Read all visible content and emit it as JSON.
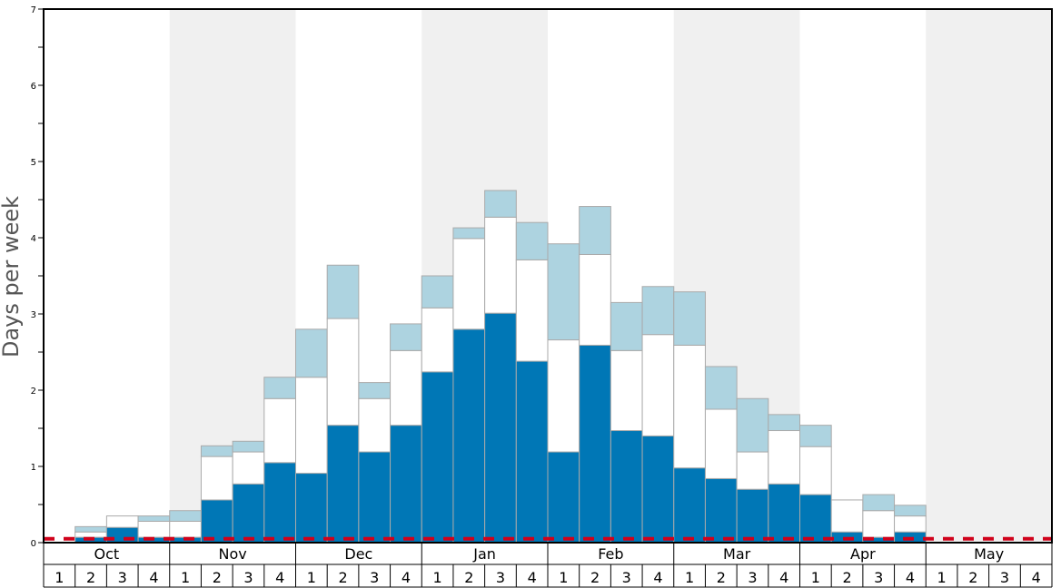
{
  "chart_data": {
    "type": "bar",
    "stacked": true,
    "ylabel": "Days per week",
    "ylim": [
      0,
      7
    ],
    "yticks": [
      "0",
      "1",
      "2",
      "3",
      "4",
      "5",
      "6",
      "7"
    ],
    "months": [
      "Oct",
      "Nov",
      "Dec",
      "Jan",
      "Feb",
      "Mar",
      "Apr",
      "May"
    ],
    "week_labels": [
      "1",
      "2",
      "3",
      "4"
    ],
    "colors": {
      "dark": "#0077b6",
      "white": "#ffffff",
      "light": "#add3e0",
      "band": "#f0f0f0",
      "reference": "#d0021b",
      "bar_outline": "#aaaaaa",
      "axis": "#000000"
    },
    "series": [
      {
        "name": "dark",
        "values": [
          0,
          0.07,
          0.2,
          0.07,
          0.07,
          0.56,
          0.77,
          1.05,
          0.91,
          1.54,
          1.19,
          1.54,
          2.24,
          2.8,
          3.01,
          2.38,
          1.19,
          2.59,
          1.47,
          1.4,
          0.98,
          0.84,
          0.7,
          0.77,
          0.63,
          0.14,
          0.07,
          0.14,
          0,
          0,
          0,
          0
        ]
      },
      {
        "name": "white",
        "values": [
          0,
          0.07,
          0.15,
          0.21,
          0.21,
          0.57,
          0.42,
          0.84,
          1.26,
          1.4,
          0.7,
          0.98,
          0.84,
          1.19,
          1.26,
          1.33,
          1.47,
          1.19,
          1.05,
          1.33,
          1.61,
          0.91,
          0.49,
          0.7,
          0.63,
          0.42,
          0.35,
          0.21,
          0,
          0,
          0,
          0
        ]
      },
      {
        "name": "light",
        "values": [
          0,
          0.07,
          0,
          0.07,
          0.14,
          0.14,
          0.14,
          0.28,
          0.63,
          0.7,
          0.21,
          0.35,
          0.42,
          0.14,
          0.35,
          0.49,
          1.26,
          0.63,
          0.63,
          0.63,
          0.7,
          0.56,
          0.7,
          0.21,
          0.28,
          0,
          0.21,
          0.14,
          0,
          0,
          0,
          0
        ]
      }
    ],
    "reference_line": {
      "value": 0.05,
      "style": "dashed"
    },
    "grid": false,
    "legend": "none"
  }
}
